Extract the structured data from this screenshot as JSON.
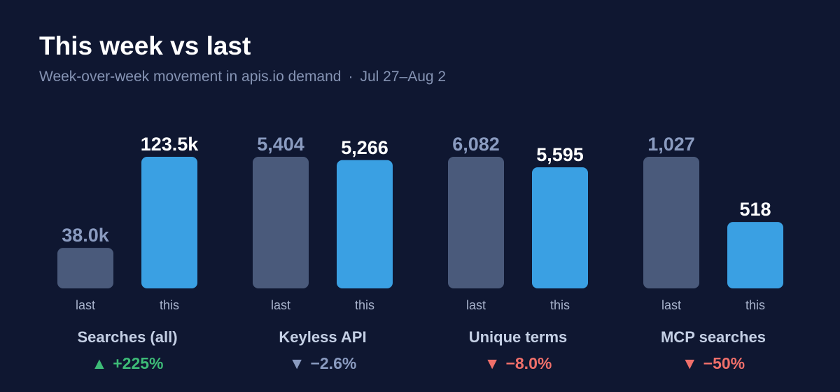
{
  "header": {
    "title": "This week vs last",
    "subtitle": "Week-over-week movement in apis.io demand",
    "separator": "·",
    "date_range": "Jul 27–Aug 2"
  },
  "colors": {
    "background": "#0f1731",
    "last_bar": "#4a5a7b",
    "this_bar": "#3aa0e3",
    "up": "#3dbb77",
    "flat": "#8a9bc0",
    "down": "#ef6f6a"
  },
  "chart_data": {
    "type": "bar",
    "title": "This week vs last",
    "subtitle": "Week-over-week movement in apis.io demand · Jul 27–Aug 2",
    "scale": "independent per group",
    "groups": [
      {
        "category": "Searches (all)",
        "last": {
          "label": "last",
          "value": 38000,
          "display": "38.0k"
        },
        "this": {
          "label": "this",
          "value": 123500,
          "display": "123.5k"
        },
        "change": {
          "arrow": "▲",
          "text": "+225%",
          "direction": "up"
        }
      },
      {
        "category": "Keyless API",
        "last": {
          "label": "last",
          "value": 5404,
          "display": "5,404"
        },
        "this": {
          "label": "this",
          "value": 5266,
          "display": "5,266"
        },
        "change": {
          "arrow": "▼",
          "text": "−2.6%",
          "direction": "flat"
        }
      },
      {
        "category": "Unique terms",
        "last": {
          "label": "last",
          "value": 6082,
          "display": "6,082"
        },
        "this": {
          "label": "this",
          "value": 5595,
          "display": "5,595"
        },
        "change": {
          "arrow": "▼",
          "text": "−8.0%",
          "direction": "down"
        }
      },
      {
        "category": "MCP searches",
        "last": {
          "label": "last",
          "value": 1027,
          "display": "1,027"
        },
        "this": {
          "label": "this",
          "value": 518,
          "display": "518"
        },
        "change": {
          "arrow": "▼",
          "text": "−50%",
          "direction": "down"
        }
      }
    ]
  }
}
